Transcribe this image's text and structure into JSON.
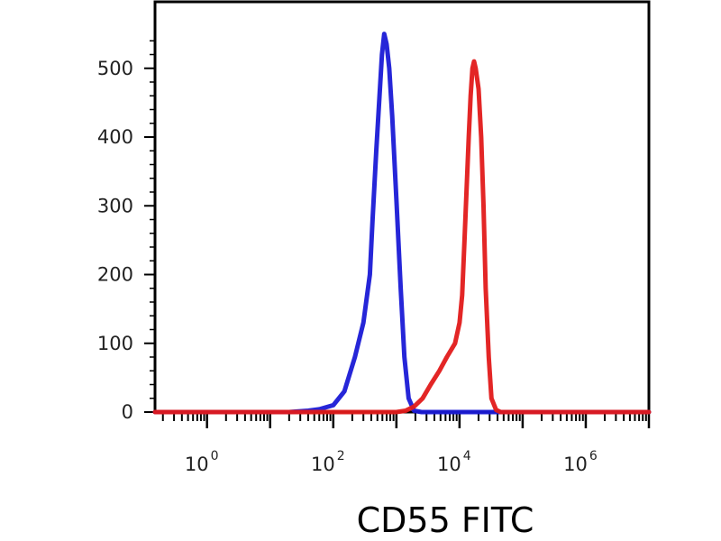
{
  "chart_data": {
    "type": "line",
    "title": "",
    "xlabel": "CD55 FITC",
    "ylabel": "",
    "xscale": "log",
    "xlim": [
      0.15,
      10000000
    ],
    "ylim": [
      0,
      560
    ],
    "grid": false,
    "legend": "none",
    "x_ticks": [
      {
        "value": 1,
        "base": "10",
        "exp": "0"
      },
      {
        "value": 100,
        "base": "10",
        "exp": "2"
      },
      {
        "value": 10000,
        "base": "10",
        "exp": "4"
      },
      {
        "value": 1000000,
        "base": "10",
        "exp": "6"
      }
    ],
    "y_ticks": [
      {
        "value": 0,
        "label": "0"
      },
      {
        "value": 100,
        "label": "100"
      },
      {
        "value": 200,
        "label": "200"
      },
      {
        "value": 300,
        "label": "300"
      },
      {
        "value": 400,
        "label": "400"
      },
      {
        "value": 500,
        "label": "500"
      }
    ],
    "series": [
      {
        "color": "#1a1ad6",
        "points": [
          [
            0.15,
            0
          ],
          [
            5,
            0
          ],
          [
            20,
            0
          ],
          [
            40,
            2
          ],
          [
            60,
            4
          ],
          [
            100,
            10
          ],
          [
            150,
            30
          ],
          [
            220,
            80
          ],
          [
            300,
            130
          ],
          [
            380,
            200
          ],
          [
            420,
            280
          ],
          [
            480,
            380
          ],
          [
            540,
            460
          ],
          [
            590,
            520
          ],
          [
            640,
            550
          ],
          [
            700,
            535
          ],
          [
            770,
            500
          ],
          [
            860,
            430
          ],
          [
            1000,
            310
          ],
          [
            1170,
            180
          ],
          [
            1340,
            80
          ],
          [
            1560,
            20
          ],
          [
            1900,
            2
          ],
          [
            2500,
            0
          ],
          [
            100000,
            0
          ],
          [
            10000000,
            0
          ]
        ]
      },
      {
        "color": "#e21a1a",
        "points": [
          [
            0.15,
            0
          ],
          [
            300,
            0
          ],
          [
            1000,
            0
          ],
          [
            1400,
            2
          ],
          [
            1900,
            8
          ],
          [
            2600,
            20
          ],
          [
            3500,
            40
          ],
          [
            4800,
            60
          ],
          [
            6300,
            80
          ],
          [
            8500,
            100
          ],
          [
            10000,
            130
          ],
          [
            11000,
            170
          ],
          [
            12000,
            250
          ],
          [
            13000,
            330
          ],
          [
            14000,
            400
          ],
          [
            15000,
            460
          ],
          [
            16000,
            500
          ],
          [
            17000,
            510
          ],
          [
            18000,
            500
          ],
          [
            20000,
            470
          ],
          [
            22000,
            400
          ],
          [
            24000,
            300
          ],
          [
            26000,
            180
          ],
          [
            29000,
            80
          ],
          [
            32000,
            20
          ],
          [
            38000,
            3
          ],
          [
            45000,
            0
          ],
          [
            10000000,
            0
          ]
        ]
      }
    ]
  }
}
